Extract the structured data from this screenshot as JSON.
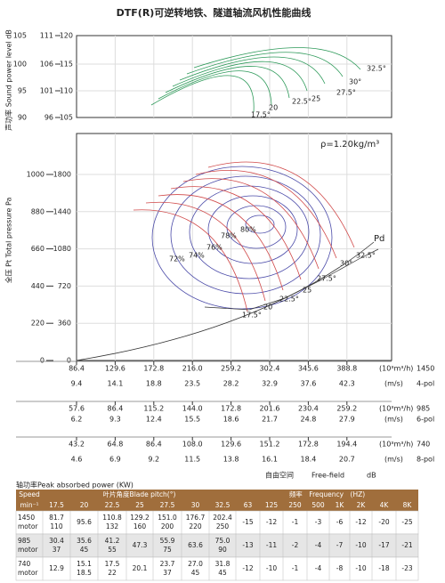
{
  "title": "DTF(R)可逆转地铁、隧道轴流风机性能曲线",
  "sound_axis": {
    "label": "声功率 Sound power level dB",
    "col1": [
      "105",
      "100",
      "95",
      "90"
    ],
    "col2": [
      "111",
      "106",
      "101",
      "96"
    ],
    "col3": [
      "120",
      "115",
      "110",
      "105"
    ]
  },
  "pressure_axis": {
    "label": "全压 Pt Total pressure Pa",
    "col1": [
      "1000",
      "880",
      "660",
      "440",
      "220",
      "0"
    ],
    "col2": [
      "1800",
      "1440",
      "1080",
      "720",
      "360",
      "0"
    ]
  },
  "density": "ρ=1.20kg/m³",
  "efficiency_labels": [
    "80%",
    "78%",
    "76%",
    "74%",
    "72%"
  ],
  "pitch_labels": [
    "17.5°",
    "20",
    "22.5°",
    "25",
    "27.5°",
    "30°",
    "32.5°"
  ],
  "sound_pitch_labels": [
    "17.5°",
    "20",
    "22.5°",
    "25",
    "27.5°",
    "30°",
    "32.5°"
  ],
  "pd_label": "Pd",
  "speed_scales": [
    {
      "flow": [
        "86.4",
        "129.6",
        "172.8",
        "216.0",
        "259.2",
        "302.4",
        "345.6",
        "388.8"
      ],
      "flow_unit": "(10³m³/h)",
      "speed": "1450",
      "velocity": [
        "9.4",
        "14.1",
        "18.8",
        "23.5",
        "28.2",
        "32.9",
        "37.6",
        "42.3"
      ],
      "velocity_unit": "(m/s)",
      "poles": "4-pol"
    },
    {
      "flow": [
        "57.6",
        "86.4",
        "115.2",
        "144.0",
        "172.8",
        "201.6",
        "230.4",
        "259.2"
      ],
      "flow_unit": "(10³m³/h)",
      "speed": "985",
      "velocity": [
        "6.2",
        "9.3",
        "12.4",
        "15.5",
        "18.6",
        "21.7",
        "24.8",
        "27.9"
      ],
      "velocity_unit": "(m/s)",
      "poles": "6-pol"
    },
    {
      "flow": [
        "43.2",
        "64.8",
        "86.4",
        "108.0",
        "129.6",
        "151.2",
        "172.8",
        "194.4"
      ],
      "flow_unit": "(10³m³/h)",
      "speed": "740",
      "velocity": [
        "4.6",
        "6.9",
        "9.2",
        "11.5",
        "13.8",
        "16.1",
        "18.4",
        "20.7"
      ],
      "velocity_unit": "(m/s)",
      "poles": "8-pol"
    }
  ],
  "free_field": [
    "自由空间",
    "Free-field",
    "dB"
  ],
  "power_caption": "轴功率Peak absorbed power (KW)",
  "table": {
    "header_top": [
      "Speed",
      "叶片角度Blade pitch(°)",
      "频率　Frequency　(HZ)"
    ],
    "columns": [
      "min⁻¹",
      "17.5",
      "20",
      "22.5",
      "25",
      "27.5",
      "30",
      "32.5",
      "63",
      "125",
      "250",
      "500",
      "1K",
      "2K",
      "4K",
      "8K"
    ],
    "rows": [
      [
        [
          "1450",
          "motor"
        ],
        [
          "81.7",
          "110"
        ],
        [
          "95.6"
        ],
        [
          "110.8",
          "132"
        ],
        [
          "129.2",
          "160"
        ],
        [
          "151.0",
          "200"
        ],
        [
          "176.7",
          "220"
        ],
        [
          "202.4",
          "250"
        ],
        [
          "-15"
        ],
        [
          "-12"
        ],
        [
          "-1"
        ],
        [
          "-3"
        ],
        [
          "-6"
        ],
        [
          "-12"
        ],
        [
          "-20"
        ],
        [
          "-25"
        ]
      ],
      [
        [
          "985",
          "motor"
        ],
        [
          "30.4",
          "37"
        ],
        [
          "35.6",
          "45"
        ],
        [
          "41.2",
          "55"
        ],
        [
          "47.3"
        ],
        [
          "55.9",
          "75"
        ],
        [
          "63.6"
        ],
        [
          "75.0",
          "90"
        ],
        [
          "-13"
        ],
        [
          "-11"
        ],
        [
          "-2"
        ],
        [
          "-4"
        ],
        [
          "-7"
        ],
        [
          "-10"
        ],
        [
          "-17"
        ],
        [
          "-21"
        ]
      ],
      [
        [
          "740",
          "motor"
        ],
        [
          "12.9"
        ],
        [
          "15.1",
          "18.5"
        ],
        [
          "17.5",
          "22"
        ],
        [
          "20.1"
        ],
        [
          "23.7",
          "37"
        ],
        [
          "27.0",
          "45"
        ],
        [
          "31.8",
          "45"
        ],
        [
          "-12"
        ],
        [
          "-10"
        ],
        [
          "-1"
        ],
        [
          "-4"
        ],
        [
          "-8"
        ],
        [
          "-10"
        ],
        [
          "-18"
        ],
        [
          "-23"
        ]
      ]
    ]
  }
}
